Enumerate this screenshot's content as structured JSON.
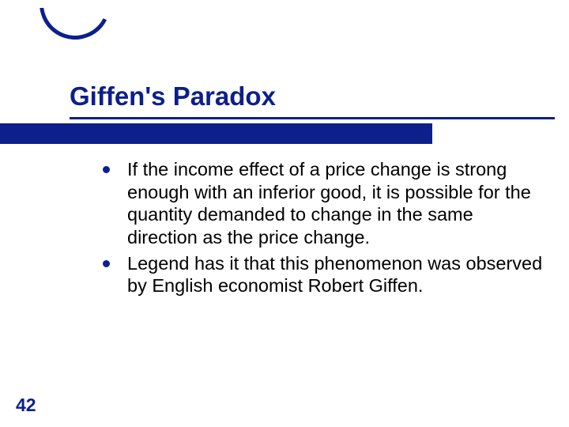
{
  "slide": {
    "title": "Giffen's Paradox",
    "title_color": "#0c1f8b",
    "title_fontsize": 33,
    "title_fontweight": "bold",
    "accent_color": "#0c1f8b",
    "background_color": "#ffffff",
    "band_width": 547,
    "band_height": 26,
    "bullets": [
      {
        "text": "If the income effect of a price change is strong enough with an inferior good, it is possible for the quantity demanded to change in the same direction as the price change."
      },
      {
        "text": "Legend has it that this phenomenon was observed by English economist Robert Giffen."
      }
    ],
    "bullet_fontsize": 23.5,
    "bullet_text_color": "#000000",
    "bullet_dot_color": "#0c1f8b",
    "page_number": "42",
    "page_number_color": "#0c1f8b",
    "page_number_fontsize": 23
  }
}
